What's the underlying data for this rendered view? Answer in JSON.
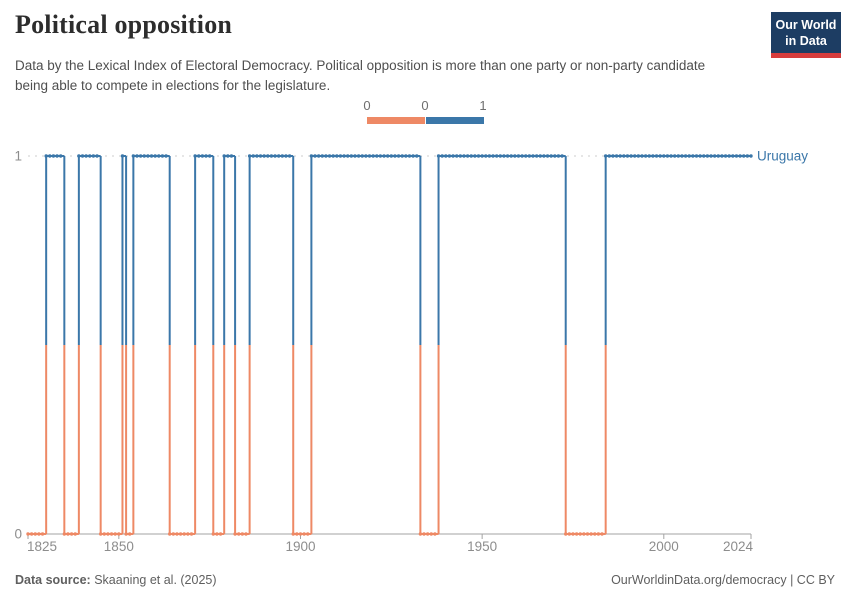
{
  "header": {
    "title": "Political opposition",
    "subtitle": "Data by the Lexical Index of Electoral Democracy. Political opposition is more than one party or non-party candidate being able to compete in elections for the legislature.",
    "logo": {
      "line1": "Our World",
      "line2": "in Data",
      "bg": "#1D3D63",
      "accent": "#D73C3C"
    }
  },
  "legend": {
    "labels": [
      "0",
      "0",
      "1"
    ]
  },
  "chart_data": {
    "type": "line",
    "title": "Political opposition",
    "entity": "Uruguay",
    "x_range": [
      1825,
      2024
    ],
    "x_ticks": [
      1825,
      1850,
      1900,
      1950,
      2000,
      2024
    ],
    "y_ticks": [
      0,
      1
    ],
    "ylim": [
      0,
      1
    ],
    "grid": "dashed line at y=1, solid axis at y=0",
    "legend_position": "top-center",
    "colors": {
      "0": "#EE8965",
      "1": "#3B77A9"
    },
    "segments": [
      {
        "start": 1825,
        "end": 1829,
        "value": 0
      },
      {
        "start": 1830,
        "end": 1834,
        "value": 1
      },
      {
        "start": 1835,
        "end": 1838,
        "value": 0
      },
      {
        "start": 1839,
        "end": 1844,
        "value": 1
      },
      {
        "start": 1845,
        "end": 1850,
        "value": 0
      },
      {
        "start": 1851,
        "end": 1851,
        "value": 1
      },
      {
        "start": 1852,
        "end": 1853,
        "value": 0
      },
      {
        "start": 1854,
        "end": 1863,
        "value": 1
      },
      {
        "start": 1864,
        "end": 1870,
        "value": 0
      },
      {
        "start": 1871,
        "end": 1875,
        "value": 1
      },
      {
        "start": 1876,
        "end": 1878,
        "value": 0
      },
      {
        "start": 1879,
        "end": 1881,
        "value": 1
      },
      {
        "start": 1882,
        "end": 1885,
        "value": 0
      },
      {
        "start": 1886,
        "end": 1897,
        "value": 1
      },
      {
        "start": 1898,
        "end": 1902,
        "value": 0
      },
      {
        "start": 1903,
        "end": 1932,
        "value": 1
      },
      {
        "start": 1933,
        "end": 1937,
        "value": 0
      },
      {
        "start": 1938,
        "end": 1972,
        "value": 1
      },
      {
        "start": 1973,
        "end": 1983,
        "value": 0
      },
      {
        "start": 1984,
        "end": 2024,
        "value": 1
      }
    ]
  },
  "footer": {
    "source_label": "Data source:",
    "source": "Skaaning et al. (2025)",
    "right": "OurWorldinData.org/democracy | CC BY"
  }
}
